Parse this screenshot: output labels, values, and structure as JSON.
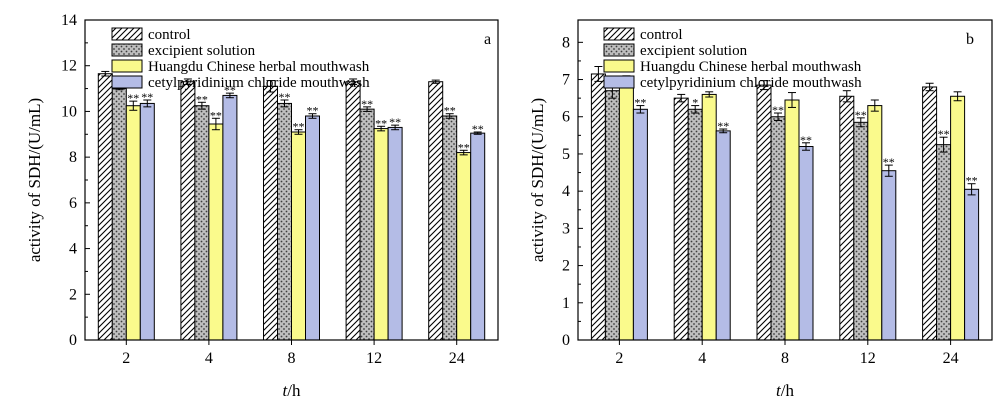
{
  "chart_data": [
    {
      "type": "bar",
      "panel_label": "a",
      "categories": [
        "2",
        "4",
        "8",
        "12",
        "24"
      ],
      "xlabel_italic": "t",
      "xlabel_rest": "/h",
      "ylabel": "activity of SDH/(U/mL)",
      "ylim": [
        0,
        14
      ],
      "yticks": [
        0,
        2,
        4,
        6,
        8,
        10,
        12,
        14
      ],
      "legend_position": "top-left",
      "series": [
        {
          "name": "control",
          "pattern": "hatch",
          "values": [
            11.65,
            11.3,
            11.1,
            11.3,
            11.3
          ],
          "errors": [
            0.1,
            0.12,
            0.25,
            0.12,
            0.07
          ],
          "sig": [
            "",
            "",
            "",
            "",
            ""
          ]
        },
        {
          "name": "excipient solution",
          "pattern": "dots",
          "values": [
            11.0,
            10.25,
            10.35,
            10.1,
            9.8
          ],
          "errors": [
            0.05,
            0.15,
            0.15,
            0.1,
            0.1
          ],
          "sig": [
            "**",
            "**",
            "**",
            "**",
            "**"
          ]
        },
        {
          "name": "Huangdu Chinese herbal mouthwash",
          "pattern": "yellow",
          "values": [
            10.25,
            9.45,
            9.1,
            9.25,
            8.2
          ],
          "errors": [
            0.2,
            0.25,
            0.1,
            0.1,
            0.1
          ],
          "sig": [
            "**",
            "**",
            "**",
            "**",
            "**"
          ]
        },
        {
          "name": "cetylpyridinium chloride mouthwash",
          "pattern": "blue",
          "values": [
            10.35,
            10.7,
            9.8,
            9.3,
            9.05
          ],
          "errors": [
            0.15,
            0.1,
            0.1,
            0.1,
            0.05
          ],
          "sig": [
            "**",
            "**",
            "**",
            "**",
            "**"
          ]
        }
      ]
    },
    {
      "type": "bar",
      "panel_label": "b",
      "categories": [
        "2",
        "4",
        "8",
        "12",
        "24"
      ],
      "xlabel_italic": "t",
      "xlabel_rest": "/h",
      "ylabel": "activity of SDH/(U/mL)",
      "ylim": [
        0,
        8.6
      ],
      "yticks": [
        0,
        1,
        2,
        3,
        4,
        5,
        6,
        7,
        8
      ],
      "legend_position": "top-left",
      "series": [
        {
          "name": "control",
          "pattern": "hatch",
          "values": [
            7.15,
            6.5,
            6.85,
            6.55,
            6.8
          ],
          "errors": [
            0.2,
            0.1,
            0.12,
            0.15,
            0.1
          ],
          "sig": [
            "",
            "",
            "",
            "",
            ""
          ]
        },
        {
          "name": "excipient solution",
          "pattern": "dots",
          "values": [
            6.7,
            6.2,
            6.0,
            5.85,
            5.25
          ],
          "errors": [
            0.2,
            0.1,
            0.1,
            0.12,
            0.2
          ],
          "sig": [
            "",
            "*",
            "**",
            "**",
            "**"
          ]
        },
        {
          "name": "Huangdu Chinese herbal mouthwash",
          "pattern": "yellow",
          "values": [
            6.95,
            6.6,
            6.45,
            6.3,
            6.55
          ],
          "errors": [
            0.15,
            0.07,
            0.2,
            0.15,
            0.12
          ],
          "sig": [
            "",
            "",
            "",
            "",
            ""
          ]
        },
        {
          "name": "cetylpyridinium chloride mouthwash",
          "pattern": "blue",
          "values": [
            6.2,
            5.62,
            5.2,
            4.55,
            4.05
          ],
          "errors": [
            0.1,
            0.05,
            0.1,
            0.15,
            0.15
          ],
          "sig": [
            "**",
            "**",
            "**",
            "**",
            "**"
          ]
        }
      ]
    }
  ],
  "colors": {
    "yellow": "#FAFA8C",
    "blue": "#B4BCE6",
    "dots_bg": "#BEBEBE",
    "dot": "#3C3C3C",
    "hatch_bg": "#FFFFFF",
    "hatch_line": "#000000"
  }
}
